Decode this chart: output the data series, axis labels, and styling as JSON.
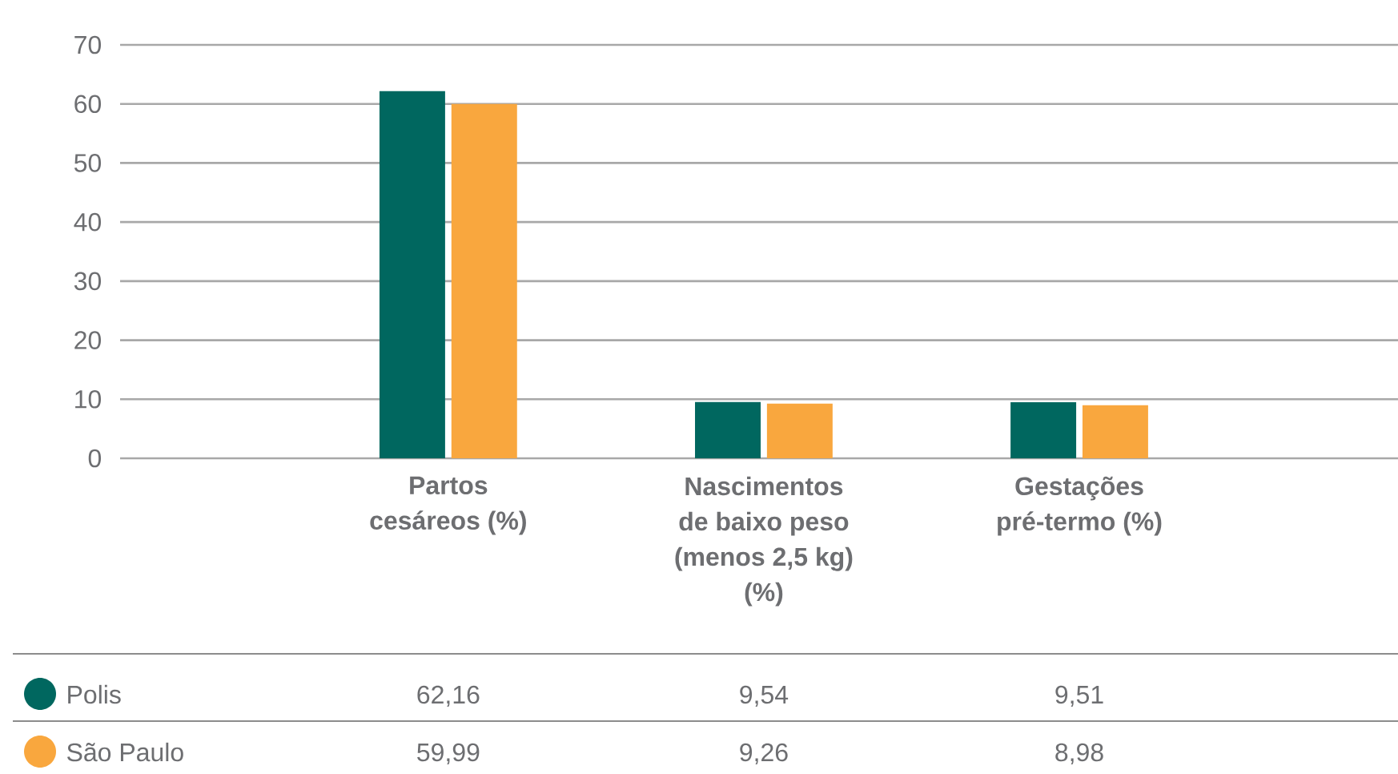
{
  "chart_data": {
    "type": "bar",
    "categories": [
      "Partos cesáreos (%)",
      "Nascimentos de baixo peso (menos 2,5 kg) (%)",
      "Gestações pré-termo (%)"
    ],
    "series": [
      {
        "name": "Polis",
        "color": "#00675f",
        "values": [
          62.16,
          9.54,
          9.51
        ],
        "value_labels": [
          "62,16",
          "9,54",
          "9,51"
        ]
      },
      {
        "name": "São Paulo",
        "color": "#f9a73e",
        "values": [
          59.99,
          9.26,
          8.98
        ],
        "value_labels": [
          "59,99",
          "9,26",
          "8,98"
        ]
      }
    ],
    "ylim": [
      0,
      70
    ],
    "yticks": [
      0,
      10,
      20,
      30,
      40,
      50,
      60,
      70
    ],
    "grid": "y",
    "legend": "bottom"
  }
}
